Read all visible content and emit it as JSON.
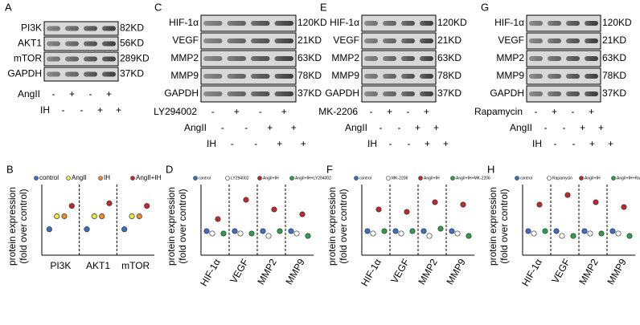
{
  "blots": [
    {
      "letter": "A",
      "rows": [
        {
          "name": "PI3K",
          "size": "82KD"
        },
        {
          "name": "AKT1",
          "size": "56KD"
        },
        {
          "name": "mTOR",
          "size": "289KD"
        },
        {
          "name": "GAPDH",
          "size": "37KD"
        }
      ],
      "treatments": [
        {
          "name": "AngII",
          "signs": [
            "-",
            "+",
            "-",
            "+"
          ]
        },
        {
          "name": "IH",
          "signs": [
            "-",
            "-",
            "+",
            "+"
          ]
        }
      ]
    },
    {
      "letter": "C",
      "rows": [
        {
          "name": "HIF-1α",
          "size": "120KD"
        },
        {
          "name": "VEGF",
          "size": "21KD"
        },
        {
          "name": "MMP2",
          "size": "63KD"
        },
        {
          "name": "MMP9",
          "size": "78KD"
        },
        {
          "name": "GAPDH",
          "size": "37KD"
        }
      ],
      "treatments": [
        {
          "name": "LY294002",
          "signs": [
            "-",
            "+",
            "-",
            "+"
          ]
        },
        {
          "name": "AngII",
          "signs": [
            "-",
            "-",
            "+",
            "+"
          ]
        },
        {
          "name": "IH",
          "signs": [
            "-",
            "-",
            "+",
            "+"
          ]
        }
      ]
    },
    {
      "letter": "E",
      "rows": [
        {
          "name": "HIF-1α",
          "size": "120KD"
        },
        {
          "name": "VEGF",
          "size": "21KD"
        },
        {
          "name": "MMP2",
          "size": "63KD"
        },
        {
          "name": "MMP9",
          "size": "78KD"
        },
        {
          "name": "GAPDH",
          "size": "37KD"
        }
      ],
      "treatments": [
        {
          "name": "MK-2206",
          "signs": [
            "-",
            "+",
            "-",
            "+"
          ]
        },
        {
          "name": "AngII",
          "signs": [
            "-",
            "-",
            "+",
            "+"
          ]
        },
        {
          "name": "IH",
          "signs": [
            "-",
            "-",
            "+",
            "+"
          ]
        }
      ]
    },
    {
      "letter": "G",
      "rows": [
        {
          "name": "HIF-1α",
          "size": "120KD"
        },
        {
          "name": "VEGF",
          "size": "21KD"
        },
        {
          "name": "MMP2",
          "size": "63KD"
        },
        {
          "name": "MMP9",
          "size": "78KD"
        },
        {
          "name": "GAPDH",
          "size": "37KD"
        }
      ],
      "treatments": [
        {
          "name": "Rapamycin",
          "signs": [
            "-",
            "+",
            "-",
            "+"
          ]
        },
        {
          "name": "AngII",
          "signs": [
            "-",
            "-",
            "+",
            "+"
          ]
        },
        {
          "name": "IH",
          "signs": [
            "-",
            "-",
            "+",
            "+"
          ]
        }
      ]
    }
  ],
  "charts": [
    {
      "type": "dot",
      "letter": "B",
      "y_label": [
        "protein expression",
        "(fold over control)"
      ],
      "ylim": [
        0,
        2.6
      ],
      "categories": [
        "PI3K",
        "AKT1",
        "mTOR"
      ],
      "series": [
        {
          "name": "control",
          "color": "#3b6fc4",
          "values": [
            1,
            1,
            1
          ]
        },
        {
          "name": "AngII",
          "color": "#e8e84a",
          "values": [
            1.5,
            1.5,
            1.5
          ]
        },
        {
          "name": "IH",
          "color": "#f28c28",
          "values": [
            1.5,
            1.5,
            1.5
          ]
        },
        {
          "name": "AngII+IH",
          "color": "#c0282d",
          "values": [
            1.9,
            2.0,
            1.9
          ]
        }
      ]
    },
    {
      "type": "dot",
      "letter": "D",
      "y_label": [
        "protein expression",
        "(fold over control)"
      ],
      "ylim": [
        0,
        2.8
      ],
      "categories": [
        "HIF-1α",
        "VEGF",
        "MMP2",
        "MMP9"
      ],
      "series": [
        {
          "name": "control",
          "color": "#3b6fc4",
          "values": [
            1,
            1,
            1,
            1
          ]
        },
        {
          "name": "LY294002",
          "color": "#ffffff",
          "values": [
            0.9,
            0.9,
            0.8,
            0.9
          ]
        },
        {
          "name": "AngII+IH",
          "color": "#c0282d",
          "values": [
            1.5,
            2.3,
            1.9,
            1.7
          ]
        },
        {
          "name": "AngII+IH+LY294002",
          "color": "#2e9e4a",
          "values": [
            0.9,
            0.9,
            1.0,
            0.8
          ]
        }
      ]
    },
    {
      "type": "dot",
      "letter": "F",
      "y_label": [
        "protein expression",
        "(fold over control)"
      ],
      "ylim": [
        0,
        2.8
      ],
      "categories": [
        "HIF-1α",
        "VEGF",
        "MMP2",
        "MMP9"
      ],
      "series": [
        {
          "name": "control",
          "color": "#3b6fc4",
          "values": [
            1,
            1,
            1,
            1
          ]
        },
        {
          "name": "MK-2206",
          "color": "#ffffff",
          "values": [
            0.9,
            0.9,
            0.8,
            0.9
          ]
        },
        {
          "name": "AngII+IH",
          "color": "#c0282d",
          "values": [
            1.9,
            1.8,
            2.2,
            2.1
          ]
        },
        {
          "name": "AngII+IH+MK-2206",
          "color": "#2e9e4a",
          "values": [
            1.0,
            1.0,
            1.1,
            0.8
          ]
        }
      ]
    },
    {
      "type": "dot",
      "letter": "H",
      "y_label": [
        "protein expression",
        "(fold over control)"
      ],
      "ylim": [
        0,
        2.8
      ],
      "categories": [
        "HIF-1α",
        "VEGF",
        "MMP2",
        "MMP9"
      ],
      "series": [
        {
          "name": "control",
          "color": "#3b6fc4",
          "values": [
            1,
            1,
            1,
            1
          ]
        },
        {
          "name": "Rapamycin",
          "color": "#ffffff",
          "values": [
            0.9,
            0.8,
            0.9,
            0.9
          ]
        },
        {
          "name": "AngII+IH",
          "color": "#c0282d",
          "values": [
            2.1,
            2.5,
            2.2,
            2.0
          ]
        },
        {
          "name": "AngII+IH+Rapamycin",
          "color": "#2e9e4a",
          "values": [
            1.0,
            0.8,
            0.9,
            0.8
          ]
        }
      ]
    }
  ]
}
